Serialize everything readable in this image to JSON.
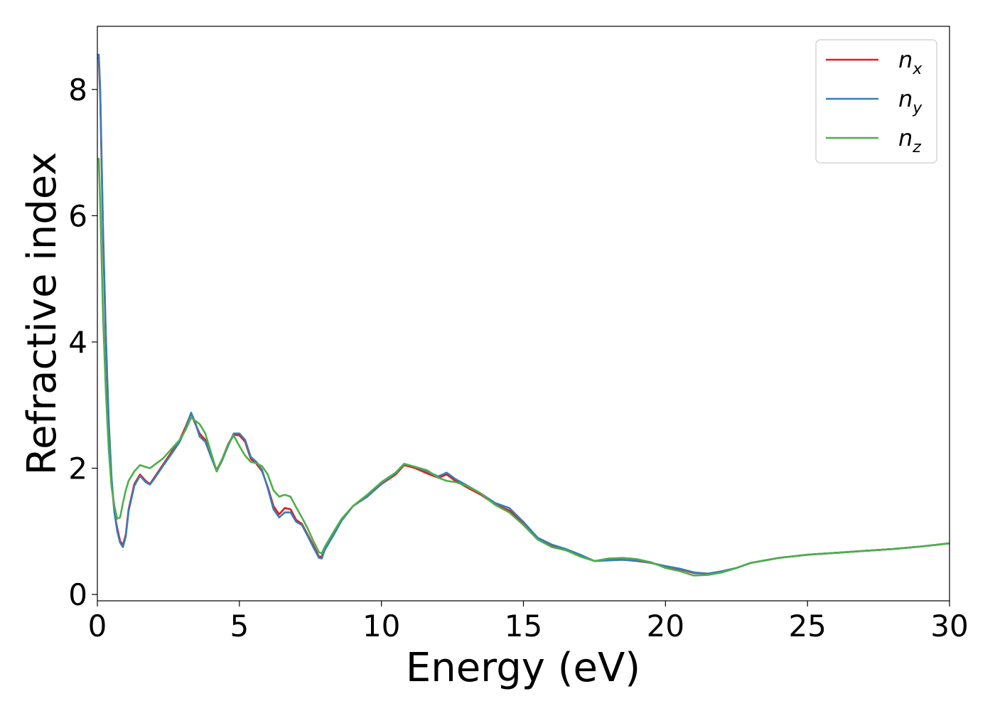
{
  "chart_data": {
    "type": "line",
    "title": "",
    "xlabel": "Energy (eV)",
    "ylabel": "Refractive index",
    "xlim": [
      0,
      30
    ],
    "ylim": [
      -0.1,
      9.0
    ],
    "xticks": [
      0,
      5,
      10,
      15,
      20,
      25,
      30
    ],
    "yticks": [
      0,
      2,
      4,
      6,
      8
    ],
    "grid": false,
    "legend": "top-right",
    "series": [
      {
        "name": "n_x",
        "label_base": "n",
        "label_sub": "x",
        "color": "#e41a1c",
        "x": [
          0.0,
          0.05,
          0.1,
          0.15,
          0.2,
          0.3,
          0.4,
          0.5,
          0.6,
          0.7,
          0.8,
          0.9,
          1.0,
          1.1,
          1.3,
          1.5,
          1.7,
          1.85,
          2.0,
          2.3,
          2.6,
          2.9,
          3.1,
          3.3,
          3.45,
          3.6,
          3.8,
          4.0,
          4.2,
          4.4,
          4.6,
          4.8,
          5.0,
          5.2,
          5.4,
          5.6,
          5.8,
          6.0,
          6.2,
          6.4,
          6.6,
          6.8,
          7.0,
          7.2,
          7.4,
          7.6,
          7.8,
          7.9,
          8.0,
          8.3,
          8.6,
          9.0,
          9.5,
          10.0,
          10.5,
          10.8,
          11.2,
          11.6,
          12.0,
          12.3,
          12.6,
          13.0,
          13.5,
          14.0,
          14.5,
          15.0,
          15.5,
          16.0,
          16.5,
          17.0,
          17.5,
          18.0,
          18.5,
          19.0,
          19.5,
          20.0,
          20.5,
          21.0,
          21.5,
          22.0,
          22.5,
          23.0,
          23.5,
          24.0,
          25.0,
          26.0,
          27.0,
          28.0,
          29.0,
          30.0
        ],
        "values": [
          8.5,
          8.5,
          7.9,
          6.8,
          5.7,
          4.0,
          2.7,
          1.8,
          1.3,
          1.05,
          0.85,
          0.78,
          0.95,
          1.35,
          1.75,
          1.9,
          1.8,
          1.75,
          1.85,
          2.05,
          2.25,
          2.45,
          2.65,
          2.87,
          2.7,
          2.55,
          2.45,
          2.2,
          1.97,
          2.15,
          2.38,
          2.53,
          2.52,
          2.42,
          2.15,
          2.07,
          1.95,
          1.7,
          1.4,
          1.27,
          1.37,
          1.35,
          1.18,
          1.12,
          0.95,
          0.78,
          0.6,
          0.6,
          0.72,
          0.95,
          1.18,
          1.4,
          1.55,
          1.75,
          1.9,
          2.05,
          2.0,
          1.92,
          1.85,
          1.9,
          1.8,
          1.7,
          1.58,
          1.43,
          1.33,
          1.13,
          0.88,
          0.77,
          0.7,
          0.62,
          0.53,
          0.55,
          0.55,
          0.53,
          0.5,
          0.44,
          0.4,
          0.34,
          0.33,
          0.36,
          0.42,
          0.5,
          0.54,
          0.58,
          0.63,
          0.66,
          0.69,
          0.72,
          0.76,
          0.81
        ]
      },
      {
        "name": "n_y",
        "label_base": "n",
        "label_sub": "y",
        "color": "#377eb8",
        "x": [
          0.0,
          0.05,
          0.1,
          0.15,
          0.2,
          0.3,
          0.4,
          0.5,
          0.6,
          0.7,
          0.8,
          0.9,
          1.0,
          1.1,
          1.3,
          1.5,
          1.7,
          1.85,
          2.0,
          2.3,
          2.6,
          2.9,
          3.1,
          3.3,
          3.45,
          3.6,
          3.8,
          4.0,
          4.2,
          4.4,
          4.6,
          4.8,
          5.0,
          5.2,
          5.4,
          5.6,
          5.8,
          6.0,
          6.2,
          6.4,
          6.6,
          6.8,
          7.0,
          7.2,
          7.4,
          7.6,
          7.8,
          7.9,
          8.0,
          8.3,
          8.6,
          9.0,
          9.5,
          10.0,
          10.5,
          10.8,
          11.2,
          11.6,
          12.0,
          12.3,
          12.6,
          13.0,
          13.5,
          14.0,
          14.5,
          15.0,
          15.5,
          16.0,
          16.5,
          17.0,
          17.5,
          18.0,
          18.5,
          19.0,
          19.5,
          20.0,
          20.5,
          21.0,
          21.5,
          22.0,
          22.5,
          23.0,
          23.5,
          24.0,
          25.0,
          26.0,
          27.0,
          28.0,
          29.0,
          30.0
        ],
        "values": [
          8.55,
          8.55,
          8.0,
          6.9,
          5.8,
          4.1,
          2.75,
          1.85,
          1.3,
          1.0,
          0.82,
          0.75,
          0.92,
          1.32,
          1.72,
          1.88,
          1.78,
          1.74,
          1.83,
          2.03,
          2.22,
          2.42,
          2.62,
          2.88,
          2.72,
          2.5,
          2.42,
          2.18,
          1.95,
          2.13,
          2.35,
          2.55,
          2.55,
          2.45,
          2.18,
          2.1,
          1.97,
          1.68,
          1.35,
          1.22,
          1.3,
          1.3,
          1.15,
          1.1,
          0.93,
          0.75,
          0.58,
          0.57,
          0.7,
          0.93,
          1.17,
          1.4,
          1.55,
          1.76,
          1.92,
          2.07,
          2.02,
          1.95,
          1.87,
          1.93,
          1.83,
          1.73,
          1.6,
          1.45,
          1.37,
          1.15,
          0.9,
          0.79,
          0.72,
          0.63,
          0.53,
          0.54,
          0.55,
          0.54,
          0.5,
          0.45,
          0.41,
          0.35,
          0.33,
          0.37,
          0.42,
          0.5,
          0.54,
          0.58,
          0.63,
          0.66,
          0.69,
          0.72,
          0.76,
          0.81
        ]
      },
      {
        "name": "n_z",
        "label_base": "n",
        "label_sub": "z",
        "color": "#4daf4a",
        "x": [
          0.0,
          0.05,
          0.1,
          0.15,
          0.2,
          0.3,
          0.4,
          0.5,
          0.6,
          0.7,
          0.8,
          0.9,
          1.0,
          1.1,
          1.3,
          1.5,
          1.7,
          1.85,
          2.0,
          2.3,
          2.6,
          2.9,
          3.1,
          3.3,
          3.45,
          3.6,
          3.8,
          4.0,
          4.2,
          4.4,
          4.6,
          4.8,
          5.0,
          5.2,
          5.4,
          5.6,
          5.8,
          6.0,
          6.2,
          6.4,
          6.6,
          6.8,
          7.0,
          7.2,
          7.4,
          7.6,
          7.8,
          7.9,
          8.0,
          8.3,
          8.6,
          9.0,
          9.5,
          10.0,
          10.5,
          10.8,
          11.2,
          11.6,
          12.0,
          12.3,
          12.6,
          13.0,
          13.5,
          14.0,
          14.5,
          15.0,
          15.5,
          16.0,
          16.5,
          17.0,
          17.5,
          18.0,
          18.5,
          19.0,
          19.5,
          20.0,
          20.5,
          21.0,
          21.5,
          22.0,
          22.5,
          23.0,
          23.5,
          24.0,
          25.0,
          26.0,
          27.0,
          28.0,
          29.0,
          30.0
        ],
        "values": [
          6.9,
          6.9,
          6.2,
          5.3,
          4.4,
          3.2,
          2.3,
          1.7,
          1.4,
          1.2,
          1.22,
          1.45,
          1.65,
          1.8,
          1.95,
          2.05,
          2.02,
          2.0,
          2.05,
          2.15,
          2.3,
          2.45,
          2.6,
          2.8,
          2.75,
          2.7,
          2.55,
          2.25,
          1.95,
          2.15,
          2.37,
          2.52,
          2.35,
          2.2,
          2.1,
          2.08,
          2.03,
          1.9,
          1.65,
          1.55,
          1.58,
          1.55,
          1.38,
          1.22,
          1.05,
          0.85,
          0.67,
          0.65,
          0.75,
          0.98,
          1.2,
          1.4,
          1.58,
          1.78,
          1.93,
          2.07,
          2.02,
          1.97,
          1.85,
          1.8,
          1.78,
          1.72,
          1.6,
          1.42,
          1.3,
          1.1,
          0.87,
          0.75,
          0.7,
          0.6,
          0.53,
          0.57,
          0.58,
          0.56,
          0.51,
          0.42,
          0.37,
          0.3,
          0.31,
          0.35,
          0.42,
          0.5,
          0.54,
          0.58,
          0.63,
          0.66,
          0.69,
          0.72,
          0.76,
          0.81
        ]
      }
    ]
  }
}
